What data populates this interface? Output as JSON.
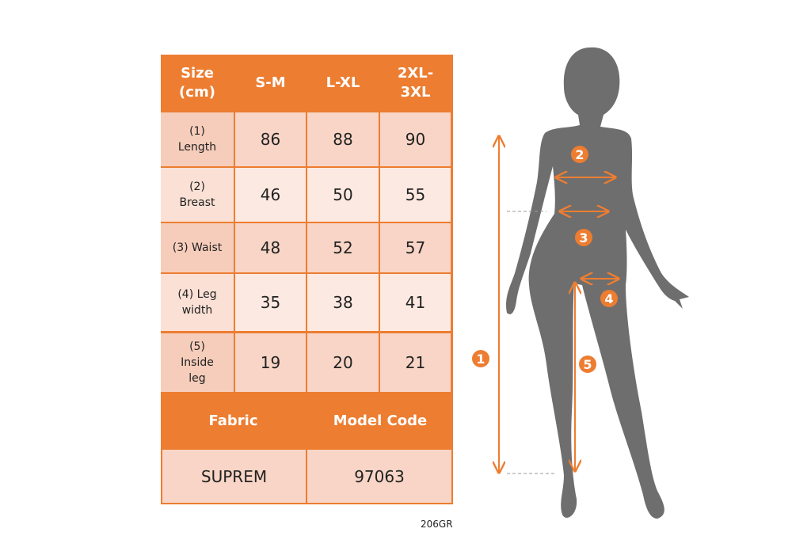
{
  "table": {
    "headers": [
      "Size\n(cm)",
      "S-M",
      "L-XL",
      "2XL-\n3XL"
    ],
    "rows": [
      {
        "label": "(1)\nLength",
        "values": [
          "86",
          "88",
          "90"
        ]
      },
      {
        "label": "(2)\nBreast",
        "values": [
          "46",
          "50",
          "55"
        ]
      },
      {
        "label": "(3) Waist",
        "values": [
          "48",
          "52",
          "57"
        ]
      },
      {
        "label": "(4) Leg\nwidth",
        "values": [
          "35",
          "38",
          "41"
        ]
      },
      {
        "label": "(5)\nInside\nleg",
        "values": [
          "19",
          "20",
          "21"
        ]
      }
    ],
    "footer_headers": [
      "Fabric",
      "Model Code"
    ],
    "footer_values": [
      "SUPREM",
      "97063"
    ]
  },
  "product_code": "206GR",
  "diagram": {
    "markers": [
      "1",
      "2",
      "3",
      "4",
      "5"
    ]
  },
  "colors": {
    "accent": "#ED7D31",
    "silhouette": "#6E6E6E",
    "cell_dark": "#F8D5C6",
    "cell_light": "#FCE9E1"
  }
}
